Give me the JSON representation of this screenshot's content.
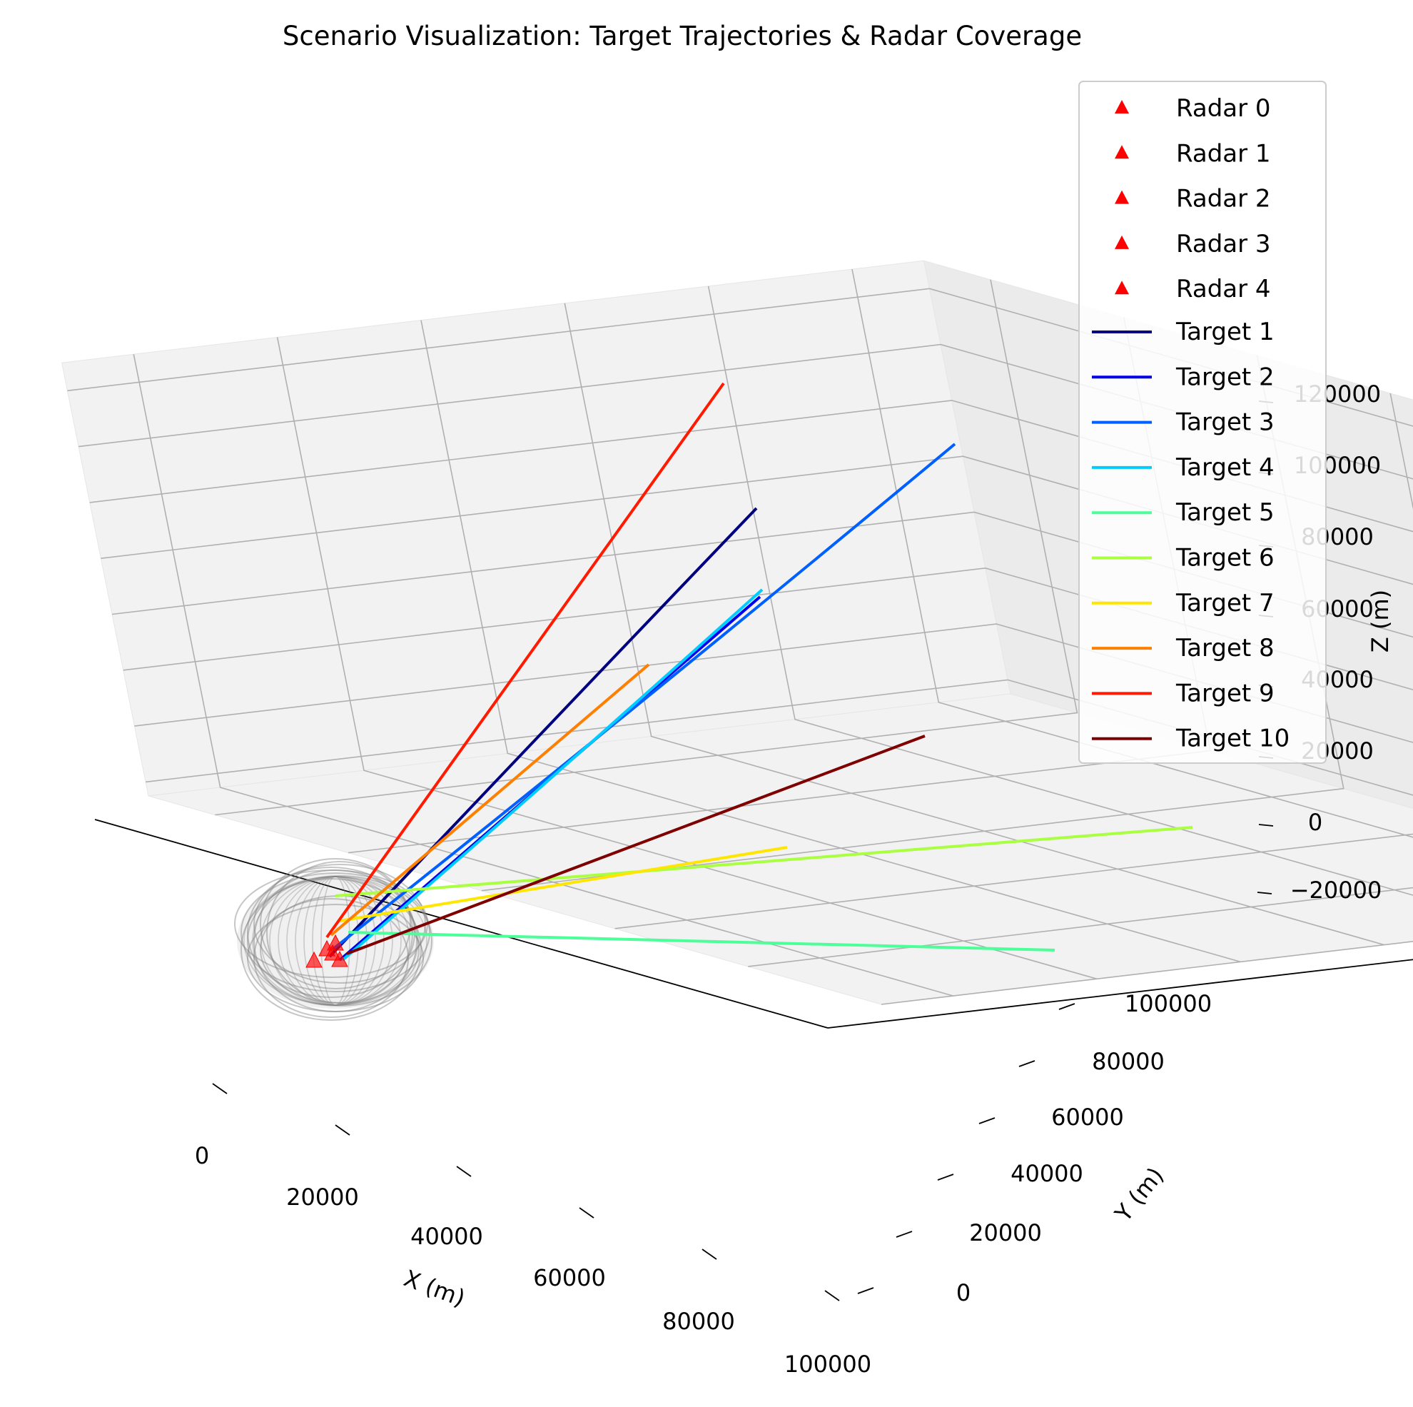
{
  "chart_data": {
    "type": "line",
    "projection": "3d",
    "title": "Scenario Visualization: Target Trajectories & Radar Coverage",
    "xlabel": "X (m)",
    "ylabel": "Y (m)",
    "zlabel": "Z (m)",
    "xlim": [
      -10000,
      100000
    ],
    "ylim": [
      -10000,
      110000
    ],
    "zlim": [
      -25000,
      130000
    ],
    "x_ticks": [
      "0",
      "20000",
      "40000",
      "60000",
      "80000",
      "100000"
    ],
    "y_ticks": [
      "0",
      "20000",
      "40000",
      "60000",
      "80000",
      "100000"
    ],
    "z_ticks": [
      "−20000",
      "0",
      "20000",
      "40000",
      "60000",
      "80000",
      "100000",
      "120000"
    ],
    "grid": true,
    "legend_position": "top-right",
    "radars": [
      {
        "name": "Radar 0",
        "color": "#ff0000",
        "x": 0,
        "y": 0,
        "z": 0
      },
      {
        "name": "Radar 1",
        "color": "#ff0000",
        "x": 2000,
        "y": 2000,
        "z": 0
      },
      {
        "name": "Radar 2",
        "color": "#ff0000",
        "x": 2000,
        "y": -1000,
        "z": 0
      },
      {
        "name": "Radar 3",
        "color": "#ff0000",
        "x": -1000,
        "y": 2500,
        "z": 0
      },
      {
        "name": "Radar 4",
        "color": "#ff0000",
        "x": 3000,
        "y": 800,
        "z": 0
      }
    ],
    "coverage": {
      "center": [
        1000,
        1000,
        0
      ],
      "radius": 15000,
      "color": "#808080"
    },
    "series": [
      {
        "name": "Target 1",
        "color": "#000080",
        "x": [
          1000,
          45000
        ],
        "y": [
          1000,
          50000
        ],
        "z": [
          0,
          85000
        ]
      },
      {
        "name": "Target 2",
        "color": "#0000ee",
        "x": [
          1500,
          55000
        ],
        "y": [
          1000,
          45000
        ],
        "z": [
          0,
          55000
        ]
      },
      {
        "name": "Target 3",
        "color": "#0060ff",
        "x": [
          1000,
          90000
        ],
        "y": [
          1000,
          70000
        ],
        "z": [
          0,
          85000
        ]
      },
      {
        "name": "Target 4",
        "color": "#00ccff",
        "x": [
          2500,
          60000
        ],
        "y": [
          1000,
          40000
        ],
        "z": [
          0,
          60000
        ]
      },
      {
        "name": "Target 5",
        "color": "#4cff99",
        "x": [
          5000,
          100000
        ],
        "y": [
          2000,
          15000
        ],
        "z": [
          0,
          0
        ]
      },
      {
        "name": "Target 6",
        "color": "#aaff40",
        "x": [
          1500,
          100000
        ],
        "y": [
          2000,
          100000
        ],
        "z": [
          0,
          0
        ]
      },
      {
        "name": "Target 7",
        "color": "#ffe600",
        "x": [
          2000,
          40000
        ],
        "y": [
          1000,
          80000
        ],
        "z": [
          0,
          0
        ]
      },
      {
        "name": "Target 8",
        "color": "#ff7f00",
        "x": [
          1000,
          15000
        ],
        "y": [
          1000,
          60000
        ],
        "z": [
          0,
          30000
        ]
      },
      {
        "name": "Target 9",
        "color": "#ff1a00",
        "x": [
          0,
          25000
        ],
        "y": [
          1000,
          30000
        ],
        "z": [
          0,
          110000
        ]
      },
      {
        "name": "Target 10",
        "color": "#7f0000",
        "x": [
          3000,
          70000
        ],
        "y": [
          1000,
          80000
        ],
        "z": [
          0,
          10000
        ]
      }
    ]
  }
}
